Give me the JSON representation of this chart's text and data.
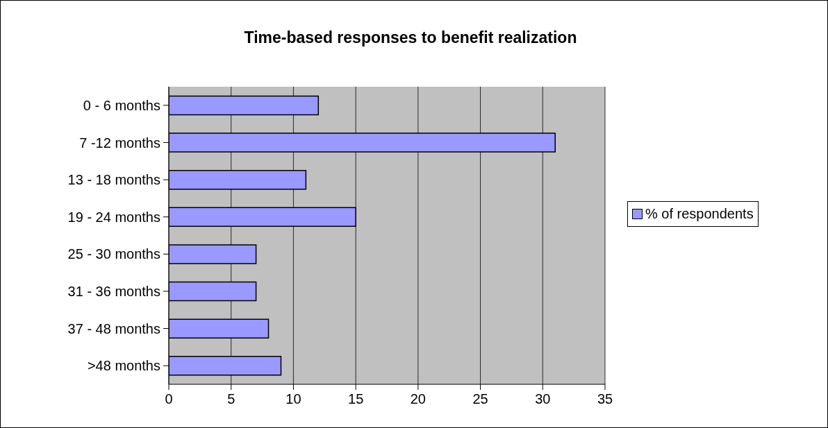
{
  "chart_data": {
    "type": "bar",
    "orientation": "horizontal",
    "title": "Time-based responses to benefit realization",
    "categories": [
      "0 - 6 months",
      "7 -12 months",
      "13 - 18 months",
      "19 - 24 months",
      "25 - 30 months",
      "31 - 36 months",
      "37 - 48 months",
      ">48 months"
    ],
    "series": [
      {
        "name": "% of respondents",
        "color": "#9999ff",
        "values": [
          12,
          31,
          11,
          15,
          7,
          7,
          8,
          9
        ]
      }
    ],
    "xlim": [
      0,
      35
    ],
    "xticks": [
      0,
      5,
      10,
      15,
      20,
      25,
      30,
      35
    ],
    "grid": "x",
    "legend": "right"
  }
}
